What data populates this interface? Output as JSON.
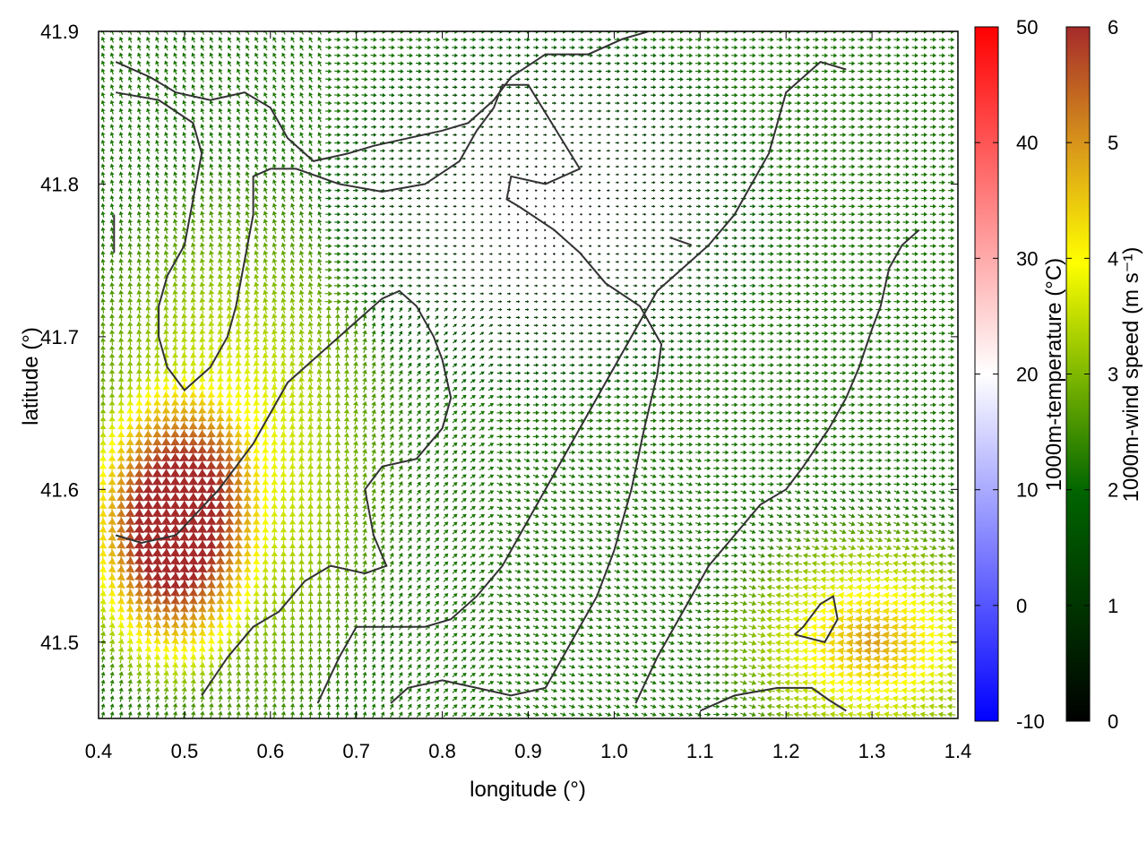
{
  "chart_data": {
    "type": "heatmap",
    "subtype": "wind-vector-field-with-contours",
    "xlabel": "longitude (°)",
    "ylabel": "latitude (°)",
    "xlim": [
      0.4,
      1.4
    ],
    "ylim": [
      41.45,
      41.9
    ],
    "xticks": [
      "0.4",
      "0.5",
      "0.6",
      "0.7",
      "0.8",
      "0.9",
      "1.0",
      "1.1",
      "1.2",
      "1.3",
      "1.4"
    ],
    "yticks": [
      "41.5",
      "41.6",
      "41.7",
      "41.8",
      "41.9"
    ],
    "xtick_values": [
      0.4,
      0.5,
      0.6,
      0.7,
      0.8,
      0.9,
      1.0,
      1.1,
      1.2,
      1.3,
      1.4
    ],
    "ytick_values": [
      41.5,
      41.6,
      41.7,
      41.8,
      41.9
    ],
    "grid": false,
    "vector_spacing": [
      0.0105,
      0.0052
    ],
    "colorbars": [
      {
        "label": "1000m-temperature (°C)",
        "range": [
          -10,
          50
        ],
        "ticks": [
          "-10",
          "0",
          "10",
          "20",
          "30",
          "40",
          "50"
        ],
        "tick_values": [
          -10,
          0,
          10,
          20,
          30,
          40,
          50
        ],
        "colormap": [
          "#0000ff",
          "#ffffff",
          "#ff0000"
        ]
      },
      {
        "label": "1000m-wind speed (m s⁻¹)",
        "range": [
          0,
          6
        ],
        "ticks": [
          "0",
          "1",
          "2",
          "3",
          "4",
          "5",
          "6"
        ],
        "tick_values": [
          0,
          1,
          2,
          3,
          4,
          5,
          6
        ],
        "colormap": [
          "#000000",
          "#004d00",
          "#008000",
          "#7fb800",
          "#ffff00",
          "#d8961b",
          "#a52a2a"
        ]
      }
    ],
    "wind_field": {
      "description_units": "m s-1",
      "calm_center": {
        "lon": 0.92,
        "lat": 41.78,
        "speed": 0.0
      },
      "high_speed_core": {
        "lon": 0.48,
        "lat": 41.57,
        "speed": 6.0
      },
      "southeast_region": {
        "lon": 1.3,
        "lat": 41.5,
        "speed": 4.5
      },
      "east_region": {
        "lon": 1.3,
        "lat": 41.75,
        "speed": 2.2
      }
    },
    "contours": [
      [
        [
          0.42,
          41.88
        ],
        [
          0.46,
          41.87
        ],
        [
          0.49,
          41.86
        ],
        [
          0.53,
          41.855
        ],
        [
          0.57,
          41.86
        ],
        [
          0.6,
          41.85
        ],
        [
          0.62,
          41.83
        ],
        [
          0.65,
          41.815
        ],
        [
          0.69,
          41.82
        ],
        [
          0.72,
          41.825
        ],
        [
          0.76,
          41.83
        ],
        [
          0.8,
          41.835
        ],
        [
          0.83,
          41.84
        ],
        [
          0.86,
          41.855
        ],
        [
          0.88,
          41.87
        ],
        [
          0.92,
          41.885
        ],
        [
          0.97,
          41.885
        ],
        [
          1.01,
          41.895
        ],
        [
          1.04,
          41.9
        ]
      ],
      [
        [
          0.42,
          41.86
        ],
        [
          0.47,
          41.855
        ],
        [
          0.51,
          41.84
        ],
        [
          0.52,
          41.82
        ],
        [
          0.51,
          41.79
        ],
        [
          0.5,
          41.76
        ],
        [
          0.48,
          41.74
        ],
        [
          0.47,
          41.72
        ],
        [
          0.47,
          41.7
        ],
        [
          0.48,
          41.68
        ],
        [
          0.5,
          41.665
        ],
        [
          0.53,
          41.68
        ],
        [
          0.55,
          41.7
        ],
        [
          0.56,
          41.72
        ],
        [
          0.57,
          41.75
        ],
        [
          0.58,
          41.78
        ],
        [
          0.58,
          41.805
        ],
        [
          0.6,
          41.81
        ],
        [
          0.63,
          41.81
        ],
        [
          0.68,
          41.8
        ],
        [
          0.73,
          41.795
        ],
        [
          0.78,
          41.8
        ],
        [
          0.82,
          41.815
        ],
        [
          0.84,
          41.835
        ],
        [
          0.86,
          41.85
        ],
        [
          0.87,
          41.865
        ],
        [
          0.9,
          41.865
        ],
        [
          0.96,
          41.81
        ],
        [
          0.92,
          41.8
        ],
        [
          0.88,
          41.805
        ],
        [
          0.875,
          41.79
        ],
        [
          0.89,
          41.785
        ],
        [
          0.93,
          41.77
        ],
        [
          0.96,
          41.755
        ],
        [
          0.99,
          41.735
        ],
        [
          1.03,
          41.72
        ],
        [
          1.055,
          41.695
        ],
        [
          1.05,
          41.675
        ],
        [
          1.035,
          41.64
        ],
        [
          1.02,
          41.6
        ],
        [
          1.0,
          41.56
        ],
        [
          0.98,
          41.53
        ],
        [
          0.95,
          41.5
        ],
        [
          0.92,
          41.47
        ],
        [
          0.88,
          41.465
        ],
        [
          0.84,
          41.47
        ],
        [
          0.8,
          41.475
        ],
        [
          0.76,
          41.47
        ],
        [
          0.74,
          41.46
        ]
      ],
      [
        [
          0.52,
          41.465
        ],
        [
          0.55,
          41.49
        ],
        [
          0.58,
          41.51
        ],
        [
          0.61,
          41.52
        ],
        [
          0.64,
          41.54
        ],
        [
          0.67,
          41.55
        ],
        [
          0.71,
          41.545
        ],
        [
          0.735,
          41.55
        ],
        [
          0.72,
          41.57
        ],
        [
          0.71,
          41.6
        ],
        [
          0.73,
          41.615
        ],
        [
          0.77,
          41.62
        ],
        [
          0.8,
          41.64
        ],
        [
          0.81,
          41.66
        ],
        [
          0.8,
          41.685
        ],
        [
          0.79,
          41.7
        ],
        [
          0.77,
          41.72
        ],
        [
          0.75,
          41.73
        ],
        [
          0.73,
          41.725
        ],
        [
          0.7,
          41.71
        ],
        [
          0.66,
          41.69
        ],
        [
          0.62,
          41.67
        ],
        [
          0.58,
          41.63
        ],
        [
          0.54,
          41.6
        ],
        [
          0.49,
          41.57
        ],
        [
          0.45,
          41.565
        ],
        [
          0.42,
          41.57
        ]
      ],
      [
        [
          0.655,
          41.46
        ],
        [
          0.68,
          41.49
        ],
        [
          0.7,
          41.51
        ],
        [
          0.74,
          41.51
        ],
        [
          0.78,
          41.51
        ],
        [
          0.81,
          41.515
        ],
        [
          0.84,
          41.53
        ],
        [
          0.87,
          41.55
        ],
        [
          0.9,
          41.58
        ],
        [
          0.93,
          41.61
        ],
        [
          0.96,
          41.64
        ],
        [
          0.99,
          41.67
        ],
        [
          1.02,
          41.7
        ],
        [
          1.05,
          41.73
        ],
        [
          1.08,
          41.745
        ],
        [
          1.11,
          41.76
        ],
        [
          1.14,
          41.78
        ],
        [
          1.16,
          41.8
        ],
        [
          1.18,
          41.82
        ],
        [
          1.19,
          41.84
        ],
        [
          1.2,
          41.86
        ],
        [
          1.22,
          41.87
        ],
        [
          1.24,
          41.88
        ],
        [
          1.27,
          41.875
        ]
      ],
      [
        [
          1.025,
          41.46
        ],
        [
          1.05,
          41.49
        ],
        [
          1.08,
          41.52
        ],
        [
          1.11,
          41.55
        ],
        [
          1.14,
          41.57
        ],
        [
          1.17,
          41.59
        ],
        [
          1.2,
          41.6
        ],
        [
          1.22,
          41.615
        ],
        [
          1.25,
          41.64
        ],
        [
          1.27,
          41.66
        ],
        [
          1.285,
          41.68
        ],
        [
          1.3,
          41.705
        ],
        [
          1.31,
          41.72
        ],
        [
          1.32,
          41.745
        ],
        [
          1.335,
          41.76
        ],
        [
          1.355,
          41.77
        ]
      ],
      [
        [
          1.21,
          41.505
        ],
        [
          1.245,
          41.5
        ],
        [
          1.26,
          41.515
        ],
        [
          1.255,
          41.53
        ],
        [
          1.24,
          41.525
        ],
        [
          1.22,
          41.51
        ],
        [
          1.21,
          41.505
        ]
      ],
      [
        [
          1.1,
          41.455
        ],
        [
          1.14,
          41.465
        ],
        [
          1.19,
          41.47
        ],
        [
          1.23,
          41.47
        ],
        [
          1.25,
          41.462
        ],
        [
          1.27,
          41.455
        ]
      ],
      [
        [
          0.418,
          41.78
        ],
        [
          0.418,
          41.755
        ]
      ],
      [
        [
          1.065,
          41.765
        ],
        [
          1.09,
          41.76
        ]
      ]
    ]
  }
}
